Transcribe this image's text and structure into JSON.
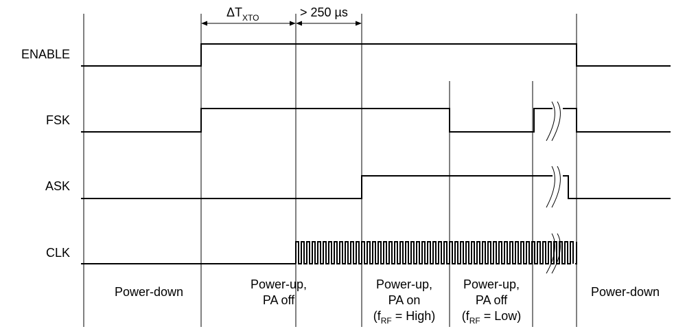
{
  "signals": {
    "enable": "ENABLE",
    "fsk": "FSK",
    "ask": "ASK",
    "clk": "CLK"
  },
  "annotations": {
    "delta_t": "ΔT",
    "delta_t_sub": "XTO",
    "min_time": "> 250 µs"
  },
  "phases": {
    "p1": "Power-down",
    "p2_line1": "Power-up,",
    "p2_line2": "PA off",
    "p3_line1": "Power-up,",
    "p3_line2": "PA on",
    "p3_line3_pre": "(f",
    "p3_line3_sub": "RF",
    "p3_line3_post": " = High)",
    "p4_line1": "Power-up,",
    "p4_line2": "PA off",
    "p4_line3_pre": "(f",
    "p4_line3_sub": "RF",
    "p4_line3_post": " = Low)",
    "p5": "Power-down"
  }
}
